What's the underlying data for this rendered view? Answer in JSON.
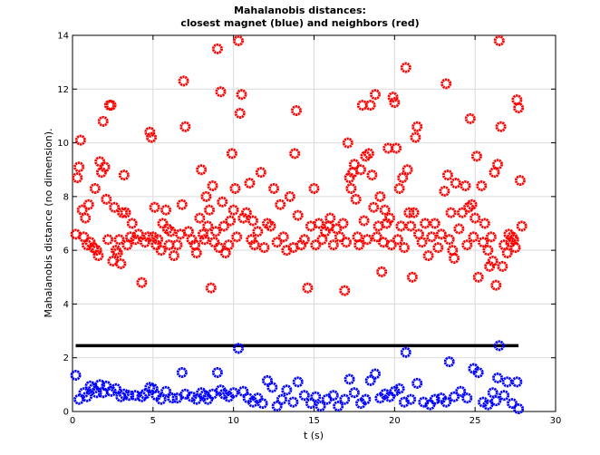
{
  "chart_data": {
    "type": "scatter",
    "title": "Mahalanobis distances:",
    "subtitle": "closest magnet (blue) and neighbors (red)",
    "xlabel": "t (s)",
    "ylabel": "Mahalanobis distance (no dimension).",
    "xlim": [
      0,
      30
    ],
    "ylim": [
      0,
      14
    ],
    "xticks": [
      0,
      5,
      10,
      15,
      20,
      25,
      30
    ],
    "yticks": [
      0,
      2,
      4,
      6,
      8,
      10,
      12,
      14
    ],
    "grid": true,
    "legend": "none",
    "threshold": {
      "y": 2.45,
      "x_start": 0.2,
      "x_end": 27.7,
      "color": "#000000"
    },
    "colors": {
      "closest": "#0000ff",
      "neighbors": "#ff0000"
    },
    "series": [
      {
        "color": "#ff0000",
        "marker": "circle",
        "points": [
          [
            0.2,
            6.6
          ],
          [
            0.3,
            8.7
          ],
          [
            0.4,
            9.1
          ],
          [
            0.5,
            10.1
          ],
          [
            0.6,
            7.5
          ],
          [
            0.7,
            6.5
          ],
          [
            0.8,
            7.2
          ],
          [
            0.9,
            6.2
          ],
          [
            1.0,
            7.7
          ],
          [
            1.1,
            6.3
          ],
          [
            1.3,
            6.1
          ],
          [
            1.4,
            8.3
          ],
          [
            1.5,
            6.0
          ],
          [
            1.6,
            5.8
          ],
          [
            1.7,
            9.3
          ],
          [
            1.8,
            8.9
          ],
          [
            1.9,
            10.8
          ],
          [
            2.0,
            9.1
          ],
          [
            2.1,
            7.9
          ],
          [
            2.2,
            6.4
          ],
          [
            2.3,
            11.4
          ],
          [
            2.4,
            11.4
          ],
          [
            2.5,
            5.6
          ],
          [
            2.6,
            7.6
          ],
          [
            2.7,
            6.0
          ],
          [
            2.8,
            5.9
          ],
          [
            2.9,
            6.4
          ],
          [
            3.0,
            5.5
          ],
          [
            3.1,
            7.4
          ],
          [
            3.2,
            8.8
          ],
          [
            3.3,
            7.4
          ],
          [
            3.4,
            6.2
          ],
          [
            3.6,
            6.5
          ],
          [
            3.7,
            7.0
          ],
          [
            3.9,
            6.4
          ],
          [
            4.1,
            6.6
          ],
          [
            4.3,
            4.8
          ],
          [
            4.5,
            6.3
          ],
          [
            4.7,
            6.5
          ],
          [
            4.8,
            10.4
          ],
          [
            4.9,
            10.2
          ],
          [
            5.0,
            6.5
          ],
          [
            5.1,
            7.6
          ],
          [
            5.2,
            6.2
          ],
          [
            5.3,
            6.4
          ],
          [
            5.5,
            6.0
          ],
          [
            5.6,
            7.0
          ],
          [
            5.8,
            7.5
          ],
          [
            5.9,
            6.8
          ],
          [
            6.0,
            6.2
          ],
          [
            6.1,
            6.7
          ],
          [
            6.3,
            5.8
          ],
          [
            6.5,
            6.2
          ],
          [
            6.7,
            6.6
          ],
          [
            6.8,
            7.7
          ],
          [
            6.9,
            12.3
          ],
          [
            7.0,
            10.6
          ],
          [
            7.2,
            6.7
          ],
          [
            7.4,
            6.4
          ],
          [
            7.6,
            6.2
          ],
          [
            7.7,
            5.9
          ],
          [
            7.9,
            7.2
          ],
          [
            8.0,
            9.0
          ],
          [
            8.1,
            6.6
          ],
          [
            8.2,
            6.4
          ],
          [
            8.3,
            8.0
          ],
          [
            8.4,
            6.9
          ],
          [
            8.5,
            7.5
          ],
          [
            8.6,
            4.6
          ],
          [
            8.7,
            8.4
          ],
          [
            8.8,
            6.3
          ],
          [
            8.9,
            6.7
          ],
          [
            9.0,
            13.5
          ],
          [
            9.1,
            6.1
          ],
          [
            9.2,
            11.9
          ],
          [
            9.3,
            7.8
          ],
          [
            9.4,
            6.9
          ],
          [
            9.5,
            5.9
          ],
          [
            9.7,
            6.2
          ],
          [
            9.8,
            7.1
          ],
          [
            9.9,
            9.6
          ],
          [
            10.0,
            7.5
          ],
          [
            10.1,
            8.3
          ],
          [
            10.2,
            6.5
          ],
          [
            10.3,
            13.8
          ],
          [
            10.4,
            11.1
          ],
          [
            10.5,
            11.8
          ],
          [
            10.6,
            7.2
          ],
          [
            10.8,
            7.4
          ],
          [
            11.0,
            8.5
          ],
          [
            11.1,
            6.4
          ],
          [
            11.2,
            7.1
          ],
          [
            11.3,
            6.2
          ],
          [
            11.5,
            6.7
          ],
          [
            11.7,
            8.9
          ],
          [
            11.9,
            6.1
          ],
          [
            12.1,
            7.0
          ],
          [
            12.3,
            6.9
          ],
          [
            12.5,
            8.3
          ],
          [
            12.7,
            6.3
          ],
          [
            12.9,
            7.7
          ],
          [
            13.1,
            6.5
          ],
          [
            13.3,
            6.0
          ],
          [
            13.5,
            8.0
          ],
          [
            13.7,
            6.1
          ],
          [
            13.8,
            9.6
          ],
          [
            13.9,
            11.2
          ],
          [
            14.0,
            7.3
          ],
          [
            14.2,
            6.2
          ],
          [
            14.4,
            6.4
          ],
          [
            14.6,
            4.6
          ],
          [
            14.8,
            6.9
          ],
          [
            15.0,
            8.3
          ],
          [
            15.1,
            6.2
          ],
          [
            15.3,
            7.0
          ],
          [
            15.5,
            6.4
          ],
          [
            15.7,
            6.7
          ],
          [
            15.9,
            6.9
          ],
          [
            16.0,
            7.2
          ],
          [
            16.2,
            6.2
          ],
          [
            16.4,
            6.8
          ],
          [
            16.6,
            6.5
          ],
          [
            16.8,
            7.0
          ],
          [
            16.9,
            4.5
          ],
          [
            17.0,
            6.3
          ],
          [
            17.1,
            10.0
          ],
          [
            17.2,
            8.7
          ],
          [
            17.3,
            8.3
          ],
          [
            17.4,
            8.9
          ],
          [
            17.5,
            9.2
          ],
          [
            17.6,
            7.9
          ],
          [
            17.7,
            6.5
          ],
          [
            17.8,
            6.2
          ],
          [
            17.9,
            9.0
          ],
          [
            18.0,
            11.4
          ],
          [
            18.1,
            7.1
          ],
          [
            18.2,
            9.5
          ],
          [
            18.3,
            6.4
          ],
          [
            18.4,
            9.6
          ],
          [
            18.5,
            11.4
          ],
          [
            18.6,
            8.8
          ],
          [
            18.7,
            7.6
          ],
          [
            18.8,
            11.8
          ],
          [
            18.9,
            6.5
          ],
          [
            19.0,
            6.9
          ],
          [
            19.1,
            8.0
          ],
          [
            19.2,
            5.2
          ],
          [
            19.3,
            6.3
          ],
          [
            19.4,
            7.5
          ],
          [
            19.5,
            7.0
          ],
          [
            19.6,
            9.8
          ],
          [
            19.7,
            7.2
          ],
          [
            19.8,
            6.2
          ],
          [
            19.9,
            11.7
          ],
          [
            20.0,
            11.5
          ],
          [
            20.1,
            9.8
          ],
          [
            20.2,
            6.4
          ],
          [
            20.3,
            8.3
          ],
          [
            20.4,
            6.9
          ],
          [
            20.5,
            8.7
          ],
          [
            20.6,
            6.1
          ],
          [
            20.7,
            12.8
          ],
          [
            20.8,
            9.0
          ],
          [
            20.9,
            7.4
          ],
          [
            21.0,
            6.9
          ],
          [
            21.1,
            5.0
          ],
          [
            21.2,
            7.4
          ],
          [
            21.3,
            10.2
          ],
          [
            21.4,
            10.6
          ],
          [
            21.5,
            6.6
          ],
          [
            21.7,
            6.3
          ],
          [
            21.9,
            7.0
          ],
          [
            22.1,
            5.8
          ],
          [
            22.3,
            6.5
          ],
          [
            22.5,
            7.0
          ],
          [
            22.7,
            6.1
          ],
          [
            22.9,
            6.6
          ],
          [
            23.1,
            8.2
          ],
          [
            23.2,
            12.2
          ],
          [
            23.3,
            8.8
          ],
          [
            23.4,
            6.4
          ],
          [
            23.5,
            7.4
          ],
          [
            23.6,
            6.0
          ],
          [
            23.7,
            5.7
          ],
          [
            23.8,
            8.5
          ],
          [
            24.0,
            6.8
          ],
          [
            24.2,
            7.4
          ],
          [
            24.4,
            8.4
          ],
          [
            24.5,
            6.2
          ],
          [
            24.6,
            7.6
          ],
          [
            24.7,
            10.9
          ],
          [
            24.8,
            7.7
          ],
          [
            24.9,
            6.5
          ],
          [
            25.0,
            7.2
          ],
          [
            25.1,
            9.5
          ],
          [
            25.2,
            5.0
          ],
          [
            25.4,
            8.4
          ],
          [
            25.5,
            6.3
          ],
          [
            25.6,
            7.0
          ],
          [
            25.8,
            6.0
          ],
          [
            25.9,
            5.4
          ],
          [
            26.0,
            6.5
          ],
          [
            26.1,
            5.6
          ],
          [
            26.2,
            8.9
          ],
          [
            26.3,
            4.7
          ],
          [
            26.4,
            9.2
          ],
          [
            26.5,
            13.8
          ],
          [
            26.6,
            10.6
          ],
          [
            26.7,
            5.4
          ],
          [
            26.8,
            6.2
          ],
          [
            27.0,
            5.9
          ],
          [
            27.1,
            6.6
          ],
          [
            27.2,
            6.3
          ],
          [
            27.3,
            6.5
          ],
          [
            27.4,
            6.4
          ],
          [
            27.5,
            6.1
          ],
          [
            27.6,
            11.6
          ],
          [
            27.7,
            11.3
          ],
          [
            27.8,
            8.6
          ],
          [
            27.9,
            6.9
          ]
        ]
      },
      {
        "color": "#0000ff",
        "marker": "circle",
        "points": [
          [
            0.2,
            1.35
          ],
          [
            0.4,
            0.45
          ],
          [
            0.7,
            0.7
          ],
          [
            0.9,
            0.55
          ],
          [
            1.1,
            0.95
          ],
          [
            1.3,
            0.85
          ],
          [
            1.5,
            0.7
          ],
          [
            1.7,
            1.0
          ],
          [
            1.9,
            0.7
          ],
          [
            2.1,
            0.95
          ],
          [
            2.4,
            0.75
          ],
          [
            2.7,
            0.85
          ],
          [
            3.0,
            0.55
          ],
          [
            3.2,
            0.65
          ],
          [
            3.5,
            0.6
          ],
          [
            3.9,
            0.6
          ],
          [
            4.3,
            0.55
          ],
          [
            4.5,
            0.65
          ],
          [
            4.8,
            0.9
          ],
          [
            5.0,
            0.85
          ],
          [
            5.2,
            0.6
          ],
          [
            5.5,
            0.45
          ],
          [
            5.8,
            0.75
          ],
          [
            6.2,
            0.5
          ],
          [
            6.5,
            0.5
          ],
          [
            6.8,
            1.45
          ],
          [
            7.0,
            0.65
          ],
          [
            7.4,
            0.55
          ],
          [
            7.7,
            0.45
          ],
          [
            8.0,
            0.7
          ],
          [
            8.2,
            0.6
          ],
          [
            8.4,
            0.45
          ],
          [
            8.7,
            0.65
          ],
          [
            9.0,
            1.45
          ],
          [
            9.2,
            0.8
          ],
          [
            9.4,
            0.65
          ],
          [
            9.7,
            0.55
          ],
          [
            10.0,
            0.7
          ],
          [
            10.3,
            2.35
          ],
          [
            10.6,
            0.75
          ],
          [
            10.9,
            0.5
          ],
          [
            11.2,
            0.35
          ],
          [
            11.5,
            0.5
          ],
          [
            11.8,
            0.3
          ],
          [
            12.1,
            1.15
          ],
          [
            12.4,
            0.9
          ],
          [
            12.7,
            0.2
          ],
          [
            13.0,
            0.45
          ],
          [
            13.3,
            0.8
          ],
          [
            13.7,
            0.35
          ],
          [
            14.0,
            1.1
          ],
          [
            14.4,
            0.6
          ],
          [
            14.8,
            0.3
          ],
          [
            15.1,
            0.55
          ],
          [
            15.4,
            0.2
          ],
          [
            15.8,
            0.45
          ],
          [
            16.2,
            0.6
          ],
          [
            16.5,
            0.2
          ],
          [
            16.9,
            0.45
          ],
          [
            17.2,
            1.2
          ],
          [
            17.5,
            0.7
          ],
          [
            17.9,
            0.3
          ],
          [
            18.2,
            0.45
          ],
          [
            18.5,
            1.15
          ],
          [
            18.8,
            1.4
          ],
          [
            19.1,
            0.5
          ],
          [
            19.4,
            0.65
          ],
          [
            19.7,
            0.55
          ],
          [
            20.0,
            0.75
          ],
          [
            20.3,
            0.85
          ],
          [
            20.6,
            0.35
          ],
          [
            20.7,
            2.2
          ],
          [
            21.0,
            0.45
          ],
          [
            21.4,
            1.05
          ],
          [
            21.8,
            0.35
          ],
          [
            22.2,
            0.25
          ],
          [
            22.5,
            0.45
          ],
          [
            22.9,
            0.5
          ],
          [
            23.2,
            0.35
          ],
          [
            23.4,
            1.85
          ],
          [
            23.7,
            0.55
          ],
          [
            24.1,
            0.75
          ],
          [
            24.5,
            0.5
          ],
          [
            24.9,
            1.6
          ],
          [
            25.2,
            1.45
          ],
          [
            25.5,
            0.35
          ],
          [
            25.8,
            0.25
          ],
          [
            26.1,
            0.7
          ],
          [
            26.3,
            0.4
          ],
          [
            26.4,
            1.25
          ],
          [
            26.5,
            2.45
          ],
          [
            26.8,
            0.6
          ],
          [
            27.0,
            1.1
          ],
          [
            27.3,
            0.3
          ],
          [
            27.6,
            1.1
          ],
          [
            27.7,
            0.1
          ]
        ]
      }
    ]
  }
}
